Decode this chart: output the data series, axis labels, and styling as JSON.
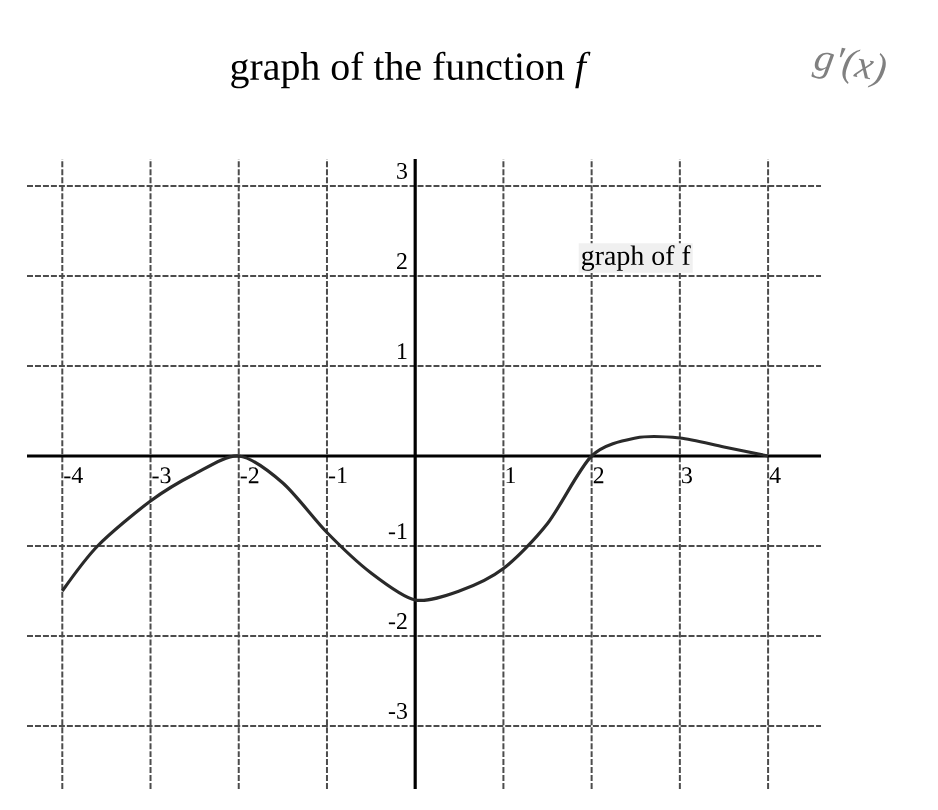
{
  "chart_data": {
    "type": "line",
    "title": "graph of the function *f*",
    "annotations": [
      "graph of f",
      "g'(x)"
    ],
    "x": [
      -4,
      -3.6,
      -3,
      -2.5,
      -2,
      -1.5,
      -1,
      -0.5,
      0,
      0.5,
      1,
      1.5,
      2,
      2.5,
      3,
      3.5,
      4
    ],
    "values": [
      -1.5,
      -1,
      -0.5,
      -0.2,
      0,
      -0.3,
      -0.85,
      -1.3,
      -1.6,
      -1.5,
      -1.25,
      -0.75,
      0,
      0.2,
      0.2,
      0.1,
      0
    ],
    "color": "#2a2a2a",
    "xlim": [
      -4.4,
      4.6
    ],
    "ylim": [
      -3.7,
      3.3
    ],
    "xticks": [
      -4,
      -3,
      -2,
      -1,
      1,
      2,
      3,
      4
    ],
    "yticks": [
      -3,
      -2,
      -1,
      1,
      2,
      3
    ],
    "grid": true
  }
}
